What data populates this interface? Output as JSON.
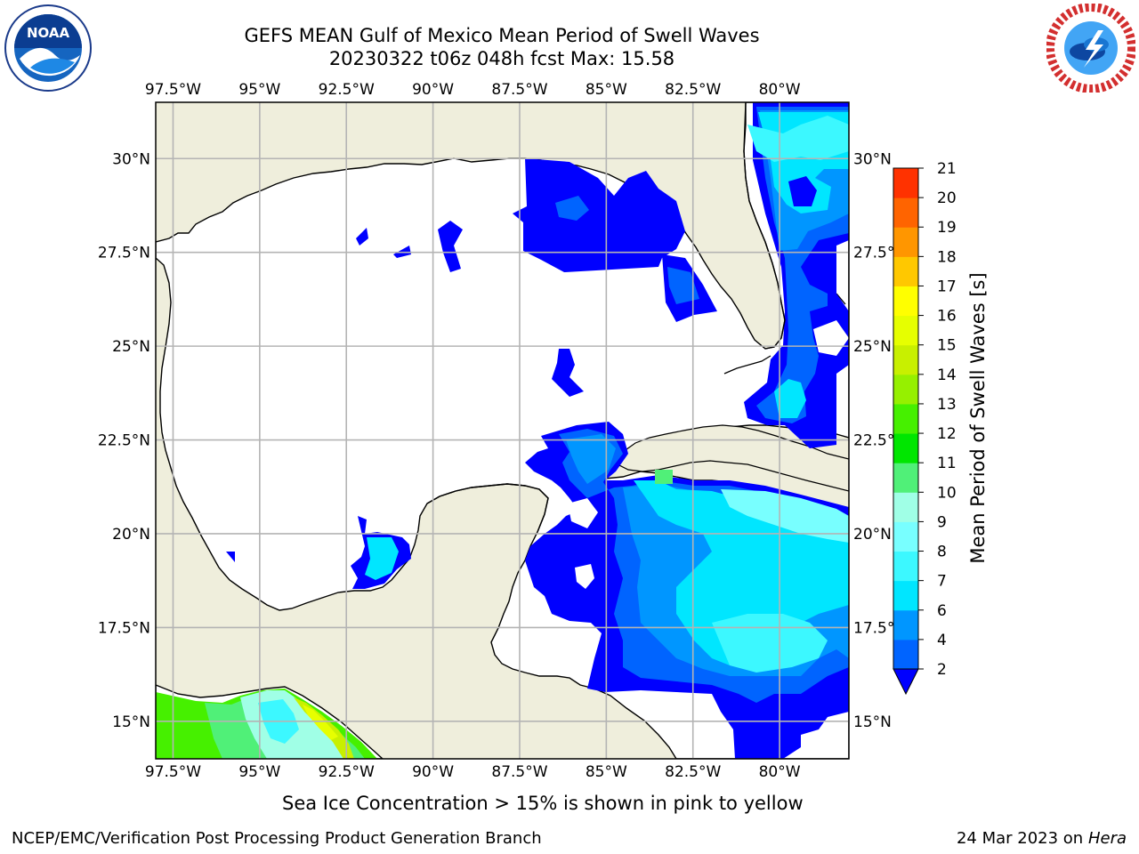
{
  "header": {
    "title_line1": "GEFS MEAN Gulf of Mexico Mean Period of Swell Waves",
    "title_line2": "20230322 t06z 048h fcst   Max: 15.58"
  },
  "logos": {
    "left": "noaa-logo-icon",
    "right": "national-weather-service-logo-icon"
  },
  "map": {
    "lon_labels": [
      "97.5°W",
      "95°W",
      "92.5°W",
      "90°W",
      "87.5°W",
      "85°W",
      "82.5°W",
      "80°W"
    ],
    "lon_values": [
      -97.5,
      -95,
      -92.5,
      -90,
      -87.5,
      -85,
      -82.5,
      -80
    ],
    "lat_labels": [
      "30°N",
      "27.5°N",
      "25°N",
      "22.5°N",
      "20°N",
      "17.5°N",
      "15°N"
    ],
    "lat_values": [
      30,
      27.5,
      25,
      22.5,
      20,
      17.5,
      15
    ],
    "lon_range": [
      -98,
      -78
    ],
    "lat_range": [
      14,
      31.5
    ],
    "land_color": "#efeedc",
    "ocean_color": "#ffffff",
    "grid_color": "#b4b4b4"
  },
  "colorbar": {
    "label": "Mean Period of Swell Waves [s]",
    "levels": [
      2,
      4,
      6,
      7,
      8,
      9,
      10,
      11,
      12,
      13,
      14,
      15,
      16,
      17,
      18,
      19,
      20,
      21
    ],
    "tick_labels": [
      "2",
      "4",
      "6",
      "7",
      "8",
      "9",
      "10",
      "11",
      "12",
      "13",
      "14",
      "15",
      "16",
      "17",
      "18",
      "19",
      "20",
      "21"
    ],
    "colors": [
      "#0064ff",
      "#0096ff",
      "#00e6ff",
      "#3cf8ff",
      "#78ffff",
      "#a0ffe6",
      "#50f078",
      "#00e600",
      "#46f000",
      "#96f000",
      "#c8f000",
      "#e6ff00",
      "#ffff00",
      "#ffc800",
      "#ff9600",
      "#ff6400",
      "#ff3200",
      "#ff0000"
    ],
    "under_color": "#0000ff"
  },
  "footer": {
    "note": "Sea Ice Concentration > 15% is shown in pink to yellow",
    "branch": "NCEP/EMC/Verification Post Processing Product Generation Branch",
    "date": "24 Mar 2023 on",
    "system": "Hera"
  }
}
